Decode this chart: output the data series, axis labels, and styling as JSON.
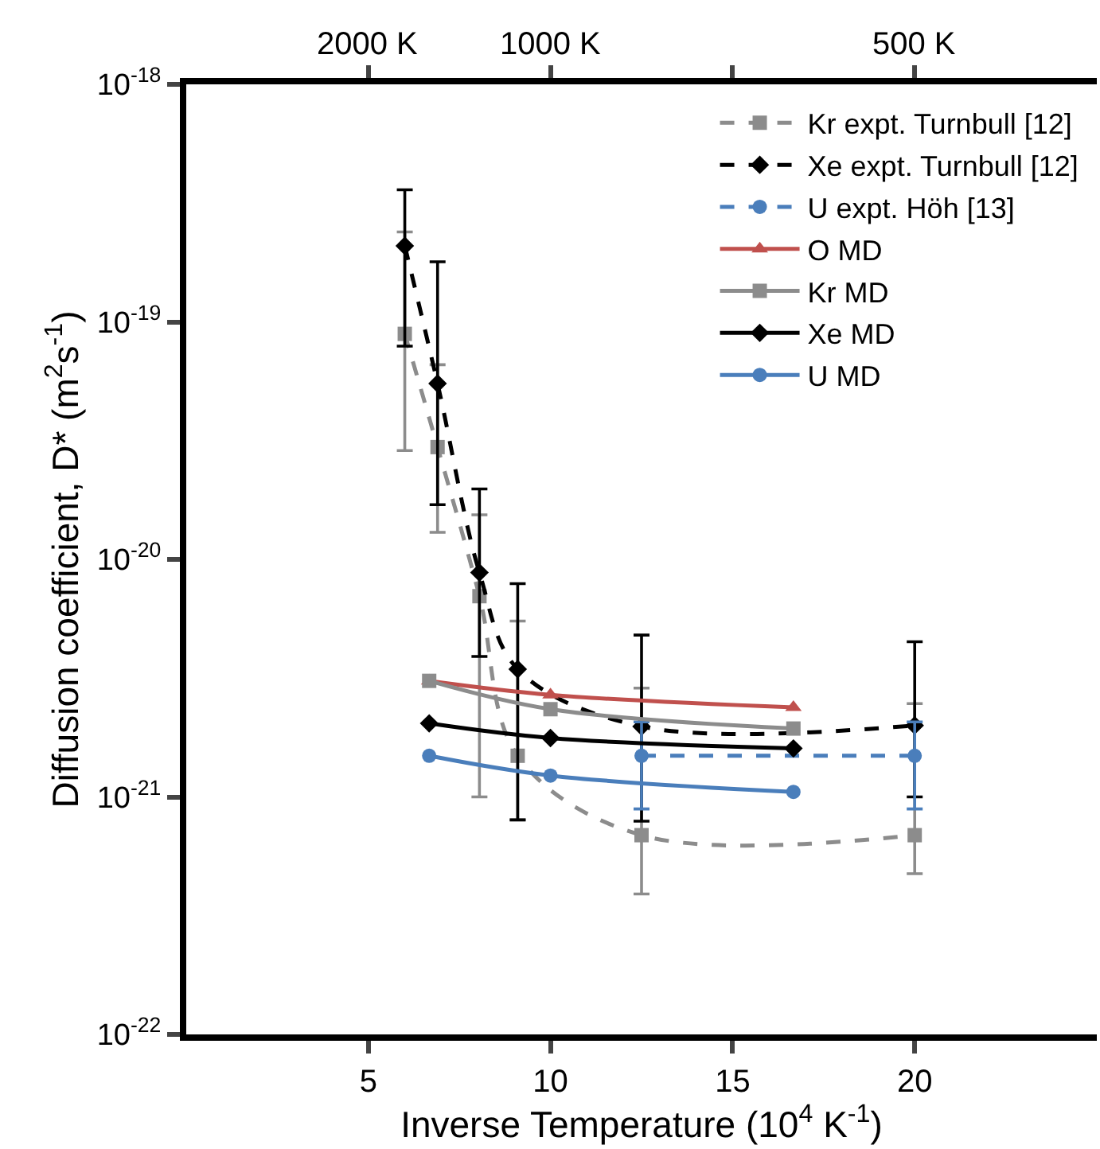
{
  "chart_data": {
    "type": "line",
    "xlabel": "Inverse Temperature (10$^{4}$ K$^{-1}$)",
    "ylabel": "Diffusion coefficient, D* (m$^{2}$s$^{-1}$)",
    "log": "y",
    "xlim": [
      0,
      25
    ],
    "xticks": [
      5,
      10,
      15,
      20
    ],
    "annotations": [
      "2000 K",
      "1000 K",
      "500 K"
    ],
    "ylim": [
      1e-22,
      1e-18
    ],
    "yticks": [
      {
        "value": 1e-22,
        "label": "10$^{-22}$"
      },
      {
        "value": 1e-21,
        "label": "10$^{-21}$"
      },
      {
        "value": 1e-20,
        "label": "10$^{-20}$"
      },
      {
        "value": 1e-19,
        "label": "10$^{-19}$"
      },
      {
        "value": 1e-18,
        "label": "10$^{-18}$"
      }
    ],
    "grid": false,
    "legend": "top right",
    "series": [
      {
        "name": "Kr expt. Turnbull [12]",
        "color": "#8c8c8c",
        "marker": "square",
        "line_style": "dashed",
        "x": [
          6.0,
          6.9,
          8.05,
          9.1,
          12.5,
          20
        ],
        "values": [
          8.9e-20,
          2.97e-20,
          7e-21,
          1.49e-21,
          6.9e-22,
          6.9e-22
        ],
        "errors": [
          [
            2.87e-20,
            2.39e-19
          ],
          [
            1.3e-20,
            6.6e-20
          ],
          [
            1e-21,
            1.54e-20
          ],
          [
            8e-22,
            5.5e-21
          ],
          [
            3.9e-22,
            2.87e-21
          ],
          [
            4.75e-22,
            2.47e-21
          ]
        ]
      },
      {
        "name": "Xe expt. Turnbull [12]",
        "color": "#000000",
        "marker": "diamond",
        "line_style": "dashed",
        "x": [
          6.0,
          6.9,
          8.05,
          9.1,
          12.5,
          20
        ],
        "values": [
          2.09e-19,
          5.5e-20,
          8.8e-21,
          3.45e-21,
          1.98e-21,
          2e-21
        ],
        "errors": [
          [
            7.9e-20,
            3.6e-19
          ],
          [
            1.7e-20,
            1.79e-19
          ],
          [
            3.9e-21,
            1.98e-20
          ],
          [
            8e-22,
            7.9e-21
          ],
          [
            7.9e-22,
            4.8e-21
          ],
          [
            1e-21,
            4.5e-21
          ]
        ]
      },
      {
        "name": "U expt. Höh [13]",
        "color": "#4a7ebb",
        "marker": "circle",
        "line_style": "dashed",
        "x": [
          12.5,
          20
        ],
        "values": [
          1.49e-21,
          1.49e-21
        ],
        "errors": [
          [
            8.9e-22,
            2.07e-21
          ],
          [
            8.9e-22,
            2.07e-21
          ]
        ]
      },
      {
        "name": "O MD",
        "color": "#c0504d",
        "marker": "triangle",
        "line_style": "solid",
        "x": [
          6.67,
          10,
          16.67
        ],
        "values": [
          3.08e-21,
          2.69e-21,
          2.38e-21
        ]
      },
      {
        "name": "Kr MD",
        "color": "#8c8c8c",
        "marker": "square",
        "line_style": "solid",
        "x": [
          6.67,
          10,
          16.67
        ],
        "values": [
          3.08e-21,
          2.34e-21,
          1.94e-21
        ]
      },
      {
        "name": "Xe MD",
        "color": "#000000",
        "marker": "diamond",
        "line_style": "solid",
        "x": [
          6.67,
          10,
          16.67
        ],
        "values": [
          2.04e-21,
          1.77e-21,
          1.6e-21
        ]
      },
      {
        "name": "U MD",
        "color": "#4a7ebb",
        "marker": "circle",
        "line_style": "solid",
        "x": [
          6.67,
          10,
          16.67
        ],
        "values": [
          1.49e-21,
          1.23e-21,
          1.05e-21
        ]
      }
    ]
  }
}
